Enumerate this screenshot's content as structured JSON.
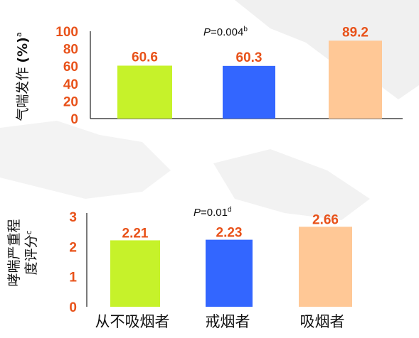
{
  "colors": {
    "accent": "#e8521a",
    "axis": "#222222",
    "bars": [
      "#c6f22a",
      "#3366ff",
      "#ffc896"
    ]
  },
  "categories": [
    "从不吸烟者",
    "戒烟者",
    "吸烟者"
  ],
  "chart_data": [
    {
      "type": "bar",
      "categories": [
        "从不吸烟者",
        "戒烟者",
        "吸烟者"
      ],
      "values": [
        60.6,
        60.3,
        89.2
      ],
      "value_labels": [
        "60.6",
        "60.3",
        "89.2"
      ],
      "ylabel_main": "气喘发作",
      "ylabel_unit": "(%)",
      "ylabel_sup": "a",
      "yticks": [
        0,
        20,
        40,
        60,
        80,
        100
      ],
      "ylim": [
        0,
        100
      ],
      "p_italic": "P",
      "p_value": "=0.004",
      "p_sup": "b",
      "grid": false
    },
    {
      "type": "bar",
      "categories": [
        "从不吸烟者",
        "戒烟者",
        "吸烟者"
      ],
      "values": [
        2.21,
        2.23,
        2.66
      ],
      "value_labels": [
        "2.21",
        "2.23",
        "2.66"
      ],
      "ylabel_line1": "哮喘严重程",
      "ylabel_line2": "度评分",
      "ylabel_sup": "c",
      "yticks": [
        0,
        1,
        2,
        3
      ],
      "ylim": [
        0,
        3
      ],
      "p_italic": "P",
      "p_value": "=0.01",
      "p_sup": "d",
      "grid": false
    }
  ]
}
